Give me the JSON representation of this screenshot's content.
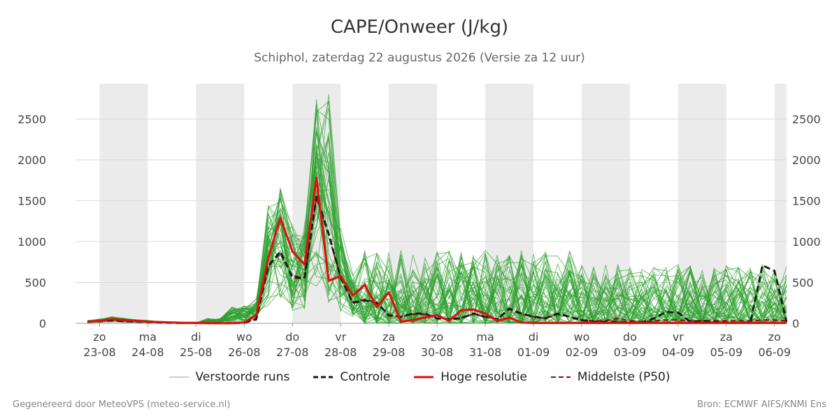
{
  "title": "CAPE/Onweer (J/kg)",
  "subtitle": "Schiphol, zaterdag 22 augustus 2026 (Versie za 12 uur)",
  "footer_left": "Gegenereerd door MeteoVPS (meteo-service.nl)",
  "footer_right": "Bron: ECMWF AIFS/KNMI Ens",
  "colors": {
    "ensemble": "#2ca02c",
    "control": "#1a1a1a",
    "hires": "#dd1111",
    "median": "#8b1010",
    "weekend_band": "#ebebeb",
    "grid": "#d9d9d9"
  },
  "chart_data": {
    "type": "line",
    "x_unit": "hours since 23-08 00:00",
    "xlim": [
      -12,
      342
    ],
    "ylim": [
      0,
      2930
    ],
    "yticks": [
      0,
      500,
      1000,
      1500,
      2000,
      2500
    ],
    "grid": true,
    "legend_position": "bottom",
    "day_ticks": [
      {
        "day": "zo",
        "date": "23-08"
      },
      {
        "day": "ma",
        "date": "24-08"
      },
      {
        "day": "di",
        "date": "25-08"
      },
      {
        "day": "wo",
        "date": "26-08"
      },
      {
        "day": "do",
        "date": "27-08"
      },
      {
        "day": "vr",
        "date": "28-08"
      },
      {
        "day": "za",
        "date": "29-08"
      },
      {
        "day": "zo",
        "date": "30-08"
      },
      {
        "day": "ma",
        "date": "31-08"
      },
      {
        "day": "di",
        "date": "01-09"
      },
      {
        "day": "wo",
        "date": "02-09"
      },
      {
        "day": "do",
        "date": "03-09"
      },
      {
        "day": "vr",
        "date": "04-09"
      },
      {
        "day": "za",
        "date": "05-09"
      },
      {
        "day": "zo",
        "date": "06-09"
      }
    ],
    "shaded_days": [
      0,
      2,
      4,
      6,
      8,
      10,
      12,
      14
    ],
    "legend": [
      {
        "label": "Verstoorde runs",
        "style": "thin-green"
      },
      {
        "label": "Controle",
        "style": "dash-black"
      },
      {
        "label": "Hoge resolutie",
        "style": "solid-red"
      },
      {
        "label": "Middelste (P50)",
        "style": "dash-darkred"
      }
    ],
    "x": [
      -6,
      0,
      6,
      12,
      18,
      24,
      30,
      36,
      42,
      48,
      54,
      60,
      66,
      72,
      78,
      84,
      90,
      96,
      102,
      108,
      114,
      120,
      126,
      132,
      138,
      144,
      150,
      156,
      162,
      168,
      174,
      180,
      186,
      192,
      198,
      204,
      210,
      216,
      222,
      228,
      234,
      240,
      246,
      252,
      258,
      264,
      270,
      276,
      282,
      288,
      294,
      300,
      306,
      312,
      318,
      324,
      330,
      336,
      342
    ],
    "series": [
      {
        "name": "Hoge resolutie",
        "role": "hires",
        "values": [
          15,
          30,
          50,
          40,
          30,
          20,
          15,
          10,
          5,
          5,
          3,
          2,
          2,
          10,
          100,
          800,
          1290,
          880,
          720,
          1780,
          520,
          580,
          340,
          470,
          200,
          380,
          20,
          40,
          70,
          100,
          30,
          160,
          170,
          120,
          30,
          70,
          10,
          5,
          5,
          5,
          5,
          5,
          5,
          5,
          5,
          5,
          5,
          5,
          5,
          5,
          5,
          5,
          5,
          5,
          5,
          5,
          5,
          5,
          5
        ]
      },
      {
        "name": "Controle",
        "role": "control",
        "values": [
          20,
          25,
          35,
          25,
          20,
          15,
          10,
          5,
          3,
          3,
          2,
          2,
          2,
          5,
          50,
          700,
          880,
          560,
          550,
          1550,
          1100,
          560,
          250,
          280,
          250,
          100,
          80,
          120,
          120,
          60,
          50,
          60,
          120,
          80,
          50,
          180,
          120,
          80,
          60,
          120,
          80,
          40,
          20,
          20,
          20,
          10,
          10,
          60,
          140,
          130,
          20,
          30,
          20,
          10,
          5,
          10,
          710,
          640,
          20
        ]
      },
      {
        "name": "Middelste (P50)",
        "role": "median",
        "values": [
          20,
          30,
          45,
          35,
          25,
          20,
          12,
          8,
          4,
          3,
          2,
          2,
          2,
          8,
          60,
          720,
          850,
          580,
          560,
          1540,
          1080,
          560,
          260,
          290,
          260,
          90,
          80,
          110,
          110,
          60,
          50,
          70,
          110,
          80,
          50,
          170,
          110,
          80,
          60,
          110,
          80,
          40,
          30,
          30,
          60,
          30,
          20,
          30,
          40,
          40,
          30,
          30,
          30,
          30,
          30,
          30,
          40,
          40,
          30
        ]
      }
    ]
  }
}
